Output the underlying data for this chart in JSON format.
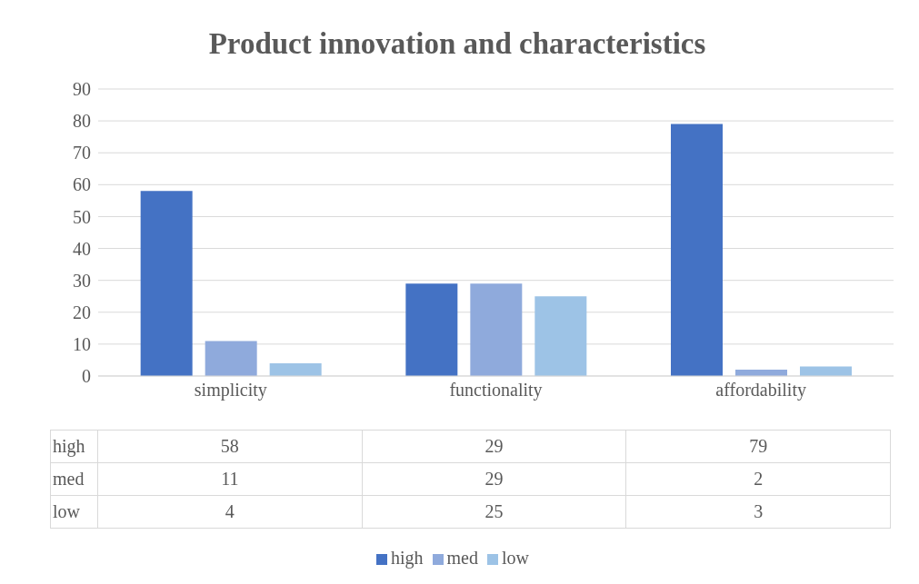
{
  "chart_data": {
    "type": "bar",
    "title": "Product innovation and characteristics",
    "categories": [
      "simplicity",
      "functionality",
      "affordability"
    ],
    "series": [
      {
        "name": "high",
        "color": "#4472c4",
        "values": [
          58,
          29,
          79
        ]
      },
      {
        "name": "med",
        "color": "#8faadc",
        "values": [
          11,
          29,
          2
        ]
      },
      {
        "name": "low",
        "color": "#9dc3e6",
        "values": [
          4,
          25,
          3
        ]
      }
    ],
    "ylim": [
      0,
      90
    ],
    "yticks": [
      0,
      10,
      20,
      30,
      40,
      50,
      60,
      70,
      80,
      90
    ],
    "grid": "y",
    "legend": "bottom",
    "data_labels": true
  }
}
